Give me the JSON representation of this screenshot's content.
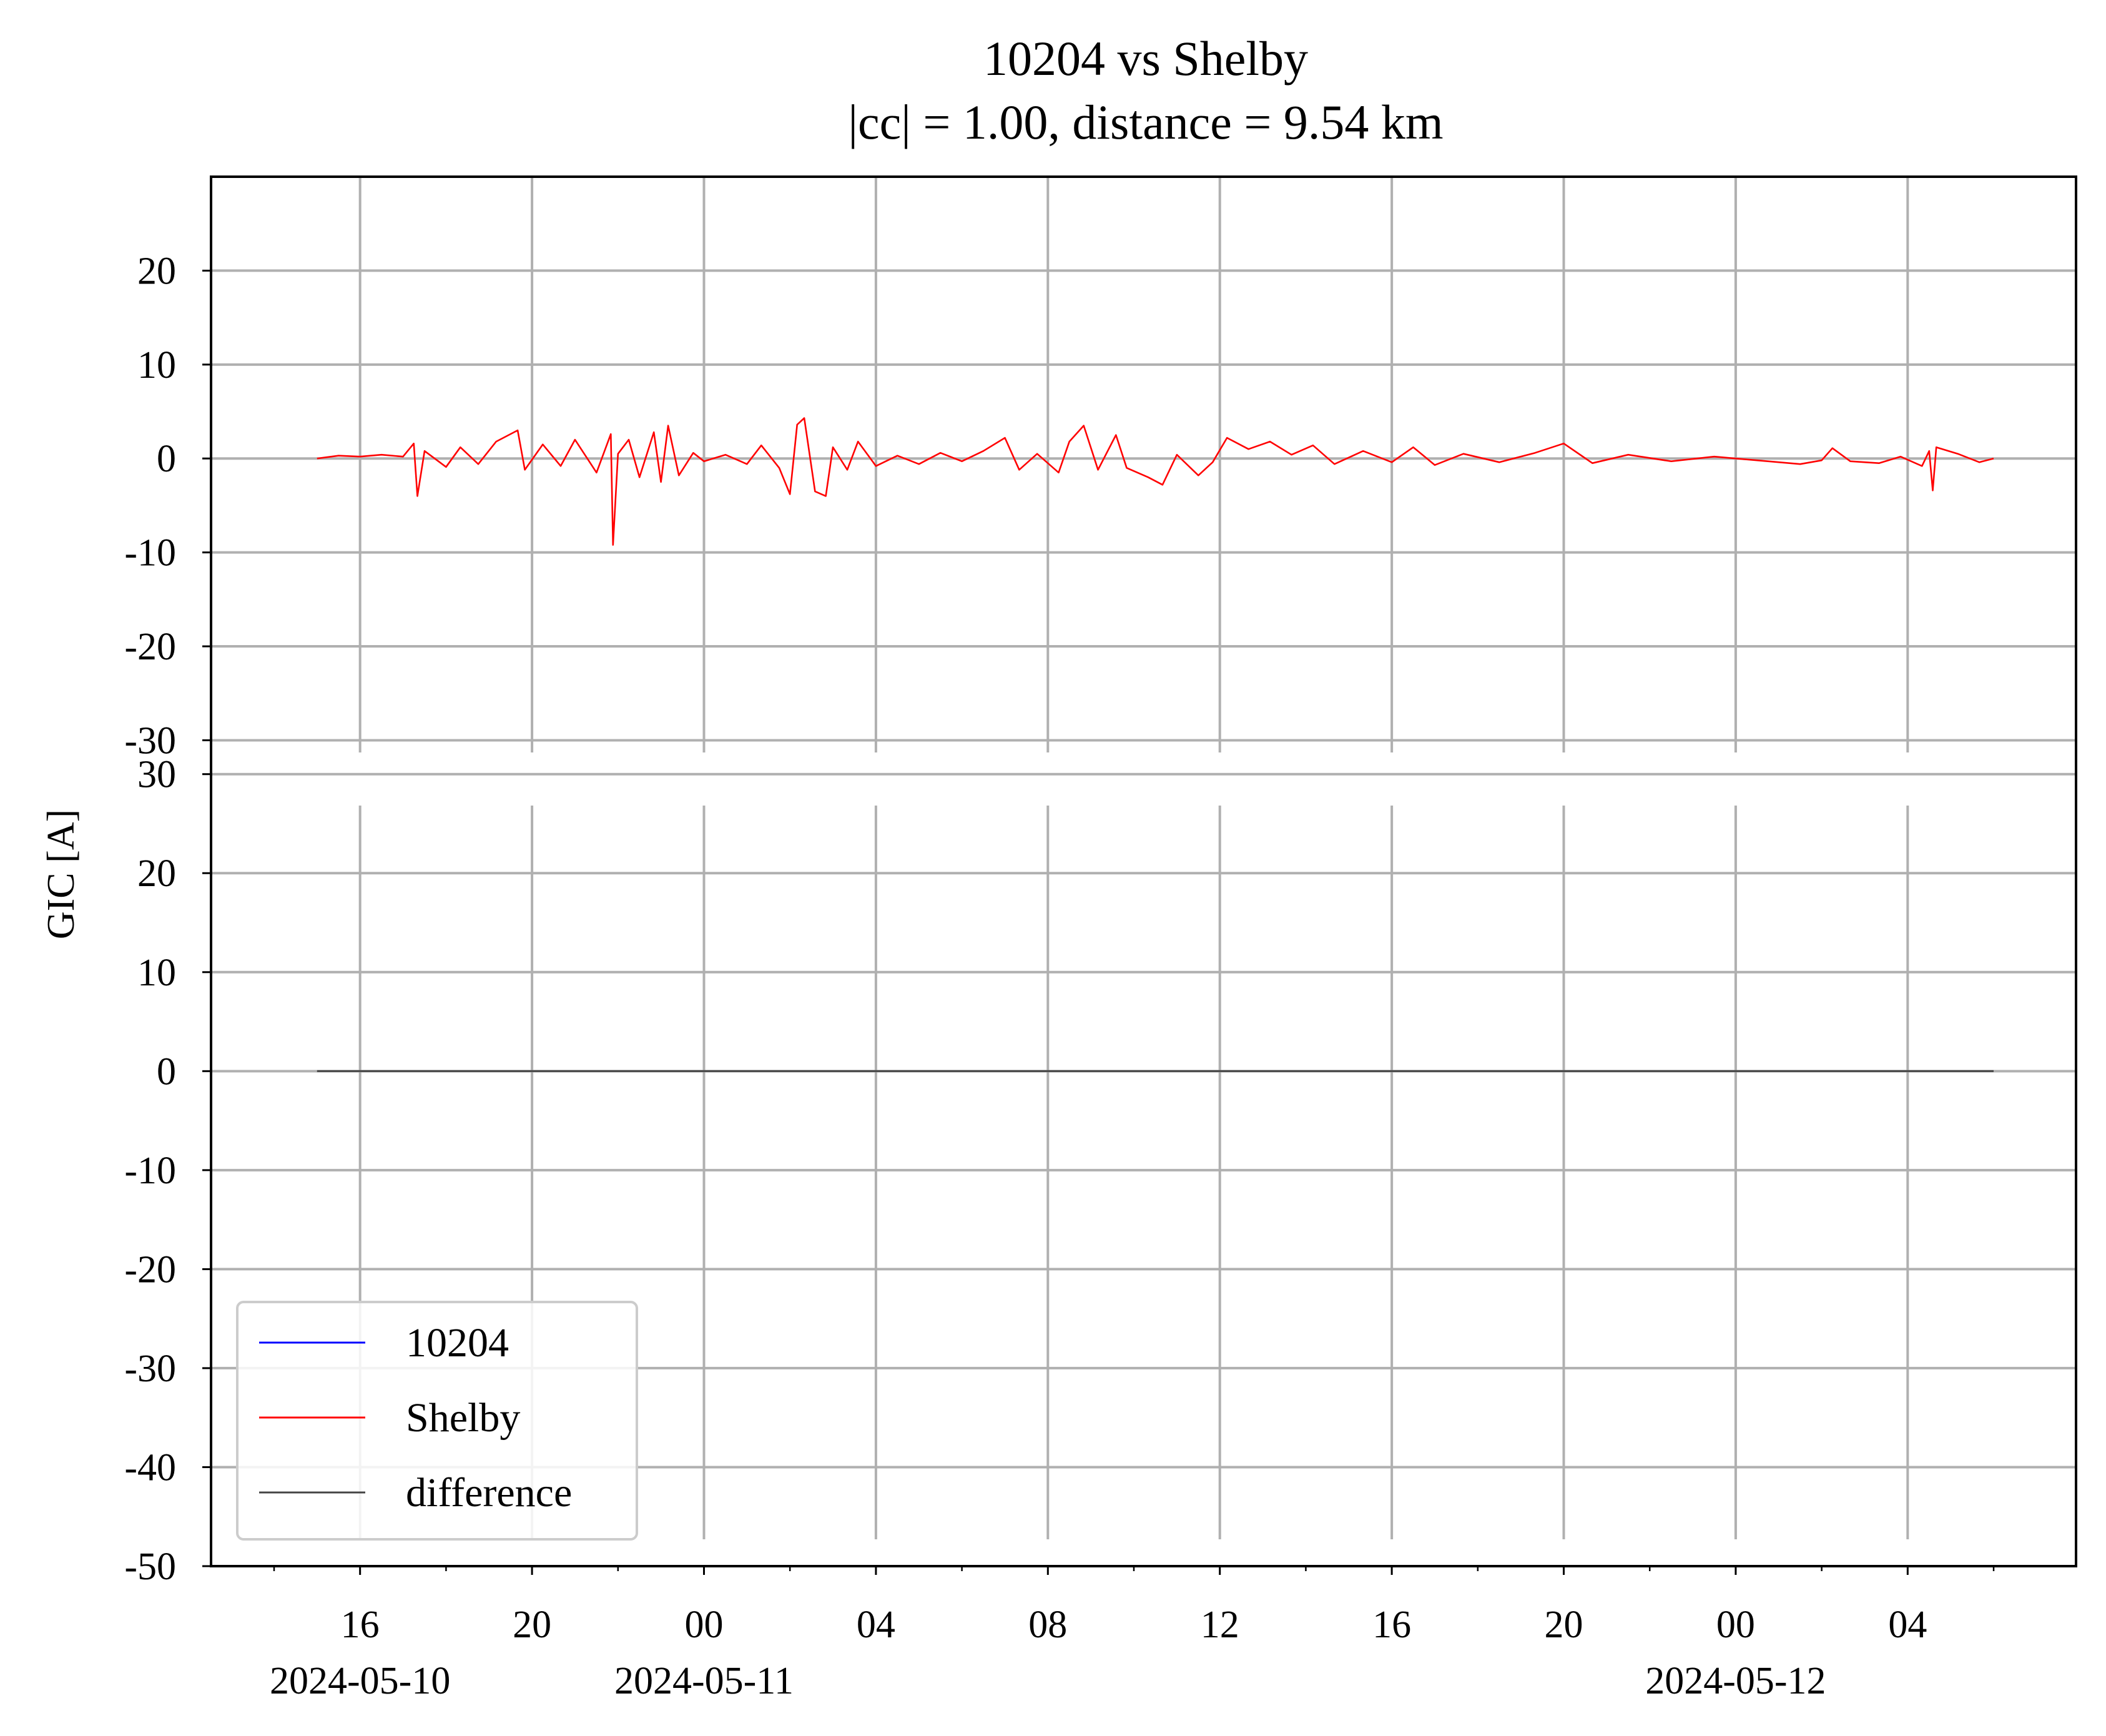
{
  "chart_data": {
    "type": "line",
    "title": "10204 vs Shelby",
    "subtitle": "|cc| = 1.00, distance = 9.54 km",
    "ylabel": "GIC [A]",
    "grid": true,
    "legend_position": "lower-left",
    "x_range": [
      "2024-05-10 12:32",
      "2024-05-12 07:55"
    ],
    "x_tick_labels": [
      "16",
      "20",
      "00",
      "04",
      "08",
      "12",
      "16",
      "20",
      "00",
      "04"
    ],
    "x_tick_times": [
      "2024-05-10 16:00",
      "2024-05-10 20:00",
      "2024-05-11 00:00",
      "2024-05-11 04:00",
      "2024-05-11 08:00",
      "2024-05-11 12:00",
      "2024-05-11 16:00",
      "2024-05-11 20:00",
      "2024-05-12 00:00",
      "2024-05-12 04:00"
    ],
    "date_labels": [
      {
        "time": "2024-05-10 16:00",
        "label": "2024-05-10"
      },
      {
        "time": "2024-05-11 00:00",
        "label": "2024-05-11"
      },
      {
        "time": "2024-05-12 00:00",
        "label": "2024-05-12"
      }
    ],
    "panels": [
      {
        "name": "top",
        "ylim": [
          -31.5,
          30
        ],
        "yticks": [
          -30,
          -20,
          -10,
          0,
          10,
          20
        ],
        "ytick_labels": [
          "-30",
          "-20",
          "-10",
          "0",
          "10",
          "20"
        ],
        "series": [
          {
            "name": "Shelby",
            "color": "#ff0000",
            "points": [
              [
                "2024-05-10 15:00",
                0.0
              ],
              [
                "2024-05-10 15:30",
                0.3
              ],
              [
                "2024-05-10 16:00",
                0.2
              ],
              [
                "2024-05-10 16:30",
                0.4
              ],
              [
                "2024-05-10 17:00",
                0.2
              ],
              [
                "2024-05-10 17:15",
                1.6
              ],
              [
                "2024-05-10 17:20",
                -4.0
              ],
              [
                "2024-05-10 17:30",
                0.8
              ],
              [
                "2024-05-10 18:00",
                -0.9
              ],
              [
                "2024-05-10 18:20",
                1.2
              ],
              [
                "2024-05-10 18:45",
                -0.6
              ],
              [
                "2024-05-10 19:10",
                1.8
              ],
              [
                "2024-05-10 19:40",
                3.0
              ],
              [
                "2024-05-10 19:50",
                -1.2
              ],
              [
                "2024-05-10 20:15",
                1.5
              ],
              [
                "2024-05-10 20:40",
                -0.8
              ],
              [
                "2024-05-10 21:00",
                2.0
              ],
              [
                "2024-05-10 21:30",
                -1.5
              ],
              [
                "2024-05-10 21:50",
                2.6
              ],
              [
                "2024-05-10 21:53",
                -9.2
              ],
              [
                "2024-05-10 22:00",
                0.5
              ],
              [
                "2024-05-10 22:15",
                2.0
              ],
              [
                "2024-05-10 22:30",
                -2.0
              ],
              [
                "2024-05-10 22:50",
                2.8
              ],
              [
                "2024-05-10 23:00",
                -2.5
              ],
              [
                "2024-05-10 23:10",
                3.5
              ],
              [
                "2024-05-10 23:25",
                -1.8
              ],
              [
                "2024-05-10 23:45",
                0.6
              ],
              [
                "2024-05-11 00:00",
                -0.3
              ],
              [
                "2024-05-11 00:30",
                0.4
              ],
              [
                "2024-05-11 01:00",
                -0.6
              ],
              [
                "2024-05-11 01:20",
                1.4
              ],
              [
                "2024-05-11 01:45",
                -1.0
              ],
              [
                "2024-05-11 02:00",
                -3.8
              ],
              [
                "2024-05-11 02:10",
                3.6
              ],
              [
                "2024-05-11 02:20",
                4.3
              ],
              [
                "2024-05-11 02:35",
                -3.5
              ],
              [
                "2024-05-11 02:50",
                -4.0
              ],
              [
                "2024-05-11 03:00",
                1.2
              ],
              [
                "2024-05-11 03:20",
                -1.2
              ],
              [
                "2024-05-11 03:35",
                1.8
              ],
              [
                "2024-05-11 04:00",
                -0.8
              ],
              [
                "2024-05-11 04:30",
                0.3
              ],
              [
                "2024-05-11 05:00",
                -0.6
              ],
              [
                "2024-05-11 05:30",
                0.6
              ],
              [
                "2024-05-11 06:00",
                -0.3
              ],
              [
                "2024-05-11 06:30",
                0.8
              ],
              [
                "2024-05-11 07:00",
                2.2
              ],
              [
                "2024-05-11 07:20",
                -1.2
              ],
              [
                "2024-05-11 07:45",
                0.5
              ],
              [
                "2024-05-11 08:15",
                -1.5
              ],
              [
                "2024-05-11 08:30",
                1.8
              ],
              [
                "2024-05-11 08:50",
                3.5
              ],
              [
                "2024-05-11 09:10",
                -1.2
              ],
              [
                "2024-05-11 09:35",
                2.5
              ],
              [
                "2024-05-11 09:50",
                -1.0
              ],
              [
                "2024-05-11 10:20",
                -2.0
              ],
              [
                "2024-05-11 10:40",
                -2.8
              ],
              [
                "2024-05-11 11:00",
                0.4
              ],
              [
                "2024-05-11 11:30",
                -1.8
              ],
              [
                "2024-05-11 11:50",
                -0.4
              ],
              [
                "2024-05-11 12:10",
                2.2
              ],
              [
                "2024-05-11 12:40",
                1.0
              ],
              [
                "2024-05-11 13:10",
                1.8
              ],
              [
                "2024-05-11 13:40",
                0.4
              ],
              [
                "2024-05-11 14:10",
                1.4
              ],
              [
                "2024-05-11 14:40",
                -0.6
              ],
              [
                "2024-05-11 15:20",
                0.8
              ],
              [
                "2024-05-11 16:00",
                -0.4
              ],
              [
                "2024-05-11 16:30",
                1.2
              ],
              [
                "2024-05-11 17:00",
                -0.7
              ],
              [
                "2024-05-11 17:40",
                0.5
              ],
              [
                "2024-05-11 18:30",
                -0.4
              ],
              [
                "2024-05-11 19:20",
                0.6
              ],
              [
                "2024-05-11 20:00",
                1.6
              ],
              [
                "2024-05-11 20:40",
                -0.5
              ],
              [
                "2024-05-11 21:30",
                0.4
              ],
              [
                "2024-05-11 22:30",
                -0.3
              ],
              [
                "2024-05-11 23:30",
                0.2
              ],
              [
                "2024-05-12 00:30",
                -0.2
              ],
              [
                "2024-05-12 01:30",
                -0.6
              ],
              [
                "2024-05-12 02:00",
                -0.2
              ],
              [
                "2024-05-12 02:15",
                1.1
              ],
              [
                "2024-05-12 02:40",
                -0.3
              ],
              [
                "2024-05-12 03:20",
                -0.5
              ],
              [
                "2024-05-12 03:50",
                0.2
              ],
              [
                "2024-05-12 04:20",
                -0.8
              ],
              [
                "2024-05-12 04:30",
                0.8
              ],
              [
                "2024-05-12 04:35",
                -3.4
              ],
              [
                "2024-05-12 04:40",
                1.2
              ],
              [
                "2024-05-12 05:10",
                0.5
              ],
              [
                "2024-05-12 05:40",
                -0.4
              ],
              [
                "2024-05-12 06:00",
                0.0
              ]
            ]
          },
          {
            "name": "10204",
            "color": "#0000ff",
            "points": []
          }
        ]
      },
      {
        "name": "bottom",
        "ylim": [
          -50,
          32
        ],
        "yticks": [
          -50,
          -40,
          -30,
          -20,
          -10,
          0,
          10,
          20,
          30
        ],
        "ytick_labels": [
          "-50",
          "-40",
          "-30",
          "-20",
          "-10",
          "0",
          "10",
          "20",
          "30"
        ],
        "series": [
          {
            "name": "difference",
            "color": "#444444",
            "points": [
              [
                "2024-05-10 15:00",
                0.0
              ],
              [
                "2024-05-12 06:00",
                0.0
              ]
            ]
          }
        ]
      }
    ],
    "legend": [
      {
        "label": "10204",
        "color": "#0000ff"
      },
      {
        "label": "Shelby",
        "color": "#ff0000"
      },
      {
        "label": "difference",
        "color": "#444444"
      }
    ]
  }
}
